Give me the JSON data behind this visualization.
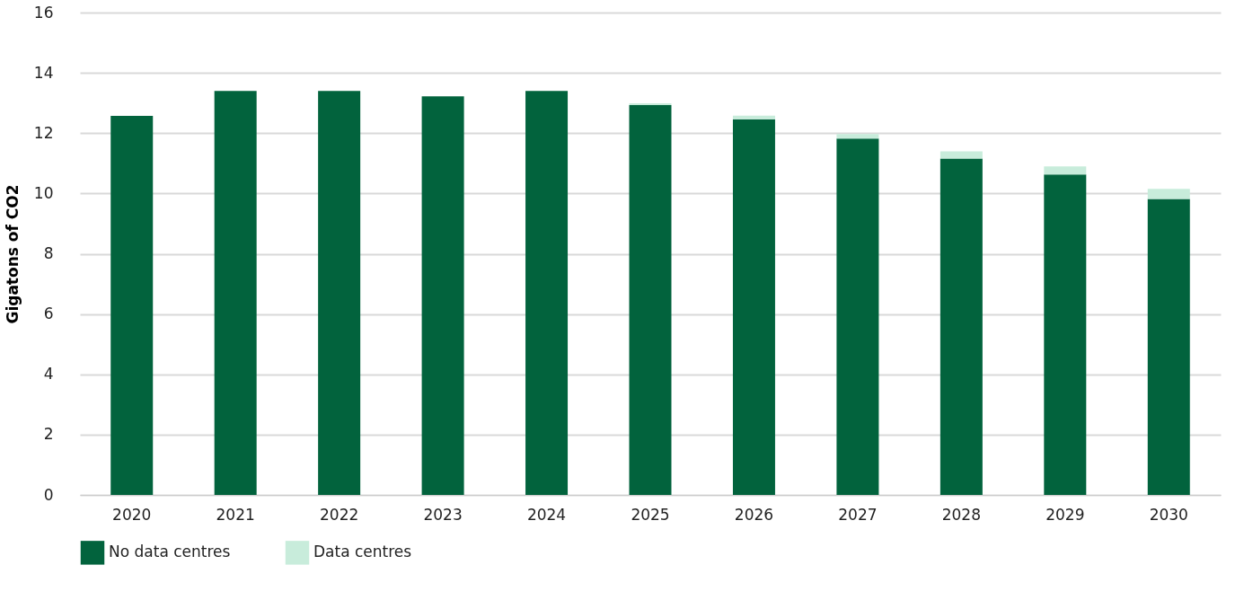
{
  "chart_data": {
    "type": "bar",
    "stacked": true,
    "ylabel": "Gigatons of CO2",
    "categories": [
      "2020",
      "2021",
      "2022",
      "2023",
      "2024",
      "2025",
      "2026",
      "2027",
      "2028",
      "2029",
      "2030"
    ],
    "series": [
      {
        "name": "No data centres",
        "color": "#02633d",
        "values": [
          12.57,
          13.4,
          13.4,
          13.22,
          13.4,
          12.93,
          12.46,
          11.82,
          11.16,
          10.63,
          9.82
        ]
      },
      {
        "name": "Data centres",
        "color": "#c8ecdb",
        "values": [
          0,
          0,
          0,
          0,
          0,
          0.06,
          0.12,
          0.15,
          0.24,
          0.27,
          0.33
        ]
      }
    ],
    "ylim": [
      0,
      16
    ],
    "yticks": [
      0,
      2,
      4,
      6,
      8,
      10,
      12,
      14,
      16
    ],
    "grid": "y",
    "legend": "bottom left"
  }
}
